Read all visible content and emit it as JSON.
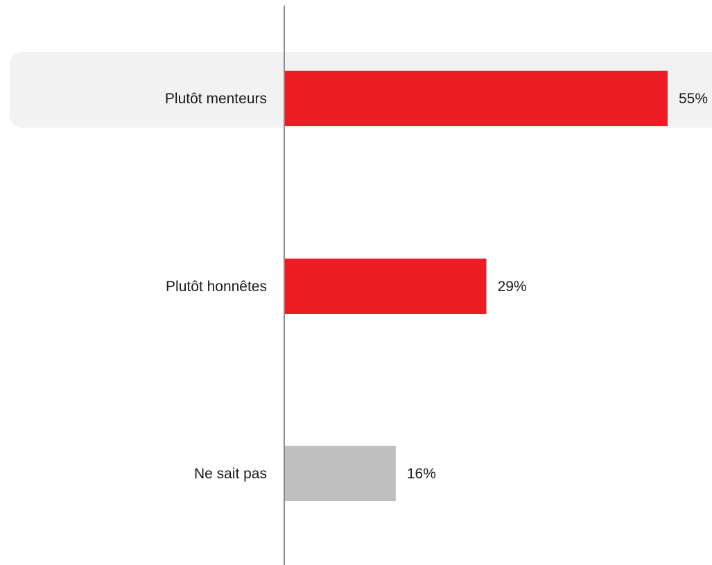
{
  "chart_data": {
    "type": "bar",
    "orientation": "horizontal",
    "categories": [
      "Plutôt menteurs",
      "Plutôt honnêtes",
      "Ne sait pas"
    ],
    "values": [
      55,
      29,
      16
    ],
    "value_labels": [
      "55%",
      "29%",
      "16%"
    ],
    "colors": [
      "#ed1c24",
      "#ed1c24",
      "#bfbfbf"
    ],
    "highlighted_category": "Plutôt menteurs",
    "xlim": [
      0,
      55
    ],
    "grid": false,
    "legend": "none"
  }
}
